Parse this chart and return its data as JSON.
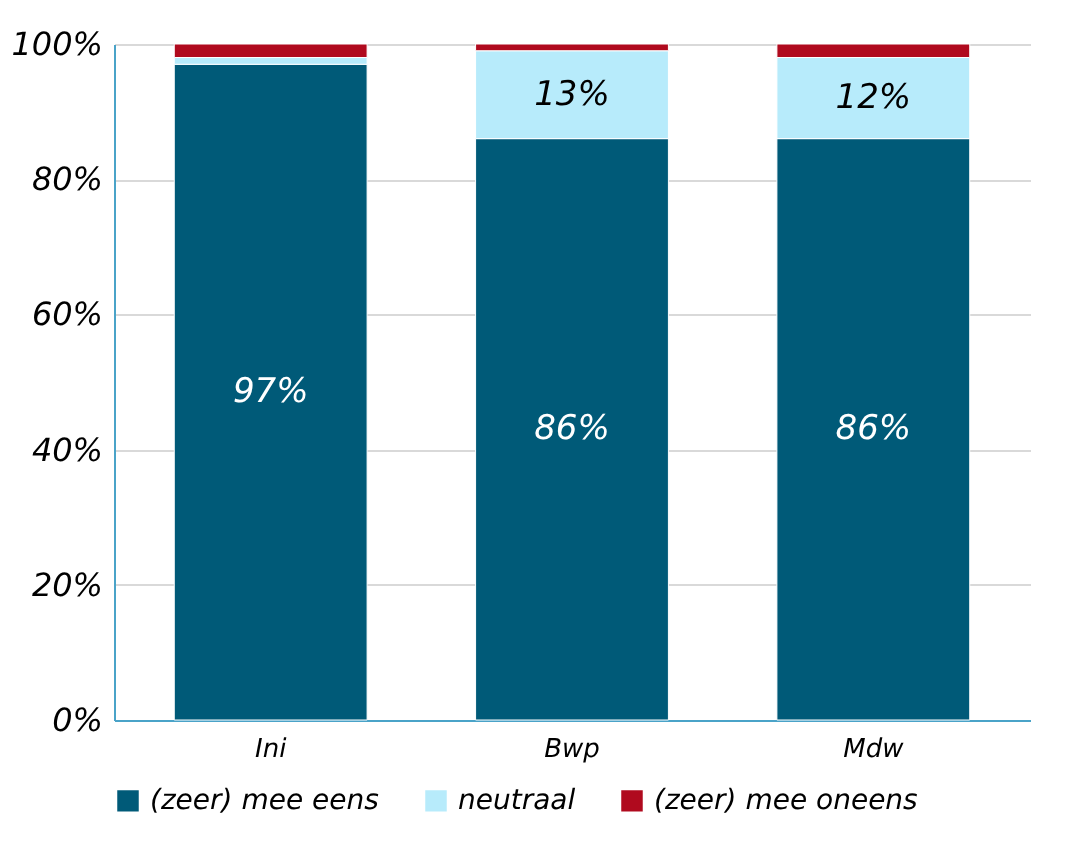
{
  "chart_data": {
    "type": "bar",
    "stacked": true,
    "categories": [
      "Ini",
      "Bwp",
      "Mdw"
    ],
    "series": [
      {
        "name": "(zeer) mee eens",
        "color": "#005a78",
        "values": [
          97,
          86,
          86
        ],
        "value_labels": [
          "97%",
          "86%",
          "86%"
        ]
      },
      {
        "name": "neutraal",
        "color": "#b7ebfb",
        "values": [
          1,
          13,
          12
        ],
        "value_labels": [
          null,
          "13%",
          "12%"
        ]
      },
      {
        "name": "(zeer) mee oneens",
        "color": "#b00a1e",
        "values": [
          2,
          1,
          2
        ],
        "value_labels": [
          null,
          null,
          null
        ]
      }
    ],
    "ylim": [
      0,
      100
    ],
    "yticks": [
      {
        "value": 0,
        "label": "0%"
      },
      {
        "value": 20,
        "label": "20%"
      },
      {
        "value": 40,
        "label": "40%"
      },
      {
        "value": 60,
        "label": "60%"
      },
      {
        "value": 80,
        "label": "80%"
      },
      {
        "value": 100,
        "label": "100%"
      }
    ],
    "grid": "y",
    "legend": "bottom"
  }
}
